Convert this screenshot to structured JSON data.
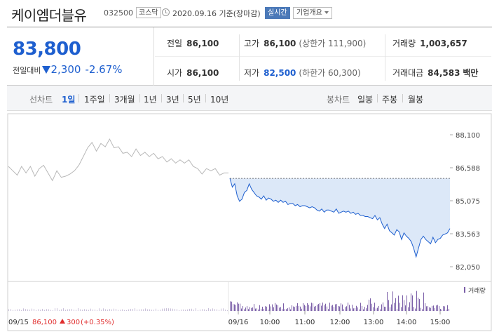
{
  "header": {
    "stock_name": "케이엠더블유",
    "stock_code": "032500",
    "market": "코스닥",
    "date_text": "2020.09.16 기준(장마감)",
    "realtime_label": "실시간",
    "company_info_label": "기업개요"
  },
  "quote": {
    "price": "83,800",
    "change_label": "전일대비",
    "change_value": "2,300",
    "change_percent": "-2.67%",
    "prev_close_label": "전일",
    "prev_close": "86,100",
    "open_label": "시가",
    "open": "86,100",
    "high_label": "고가",
    "high": "86,100",
    "upper_limit": "(상한가 111,900)",
    "low_label": "저가",
    "low": "82,500",
    "lower_limit": "(하한가 60,300)",
    "volume_label": "거래량",
    "volume": "1,003,657",
    "amount_label": "거래대금",
    "amount": "84,583",
    "amount_unit": "백만"
  },
  "tabs": {
    "line_chart_label": "선차트",
    "line_periods": [
      "1일",
      "1주일",
      "3개월",
      "1년",
      "3년",
      "5년",
      "10년"
    ],
    "active_period": "1일",
    "candle_chart_label": "봉차트",
    "candle_periods": [
      "일봉",
      "주봉",
      "월봉"
    ]
  },
  "colors": {
    "up": "#e02e2e",
    "down": "#1e5fcf",
    "area": "#dce8f8",
    "prev_day_line": "#b8b8b8",
    "volume_bar": "#7b5fa8"
  },
  "chart_data": {
    "type": "line",
    "ylim": [
      82050,
      88100
    ],
    "yticks": [
      "88,100",
      "86,588",
      "85,075",
      "83,563",
      "82,050"
    ],
    "xticks": [
      "09/16",
      "10:00",
      "11:00",
      "12:00",
      "13:00",
      "14:00",
      "15:00"
    ],
    "reference_price": 86100,
    "volume_legend": "거래량",
    "prev_day_summary": {
      "date": "09/15",
      "close": "86,100",
      "change": "300",
      "percent": "(+0.35%)"
    },
    "prev_day_series": [
      [
        0,
        86650
      ],
      [
        2,
        86450
      ],
      [
        4,
        86250
      ],
      [
        6,
        86650
      ],
      [
        8,
        86350
      ],
      [
        10,
        86650
      ],
      [
        12,
        86200
      ],
      [
        14,
        86550
      ],
      [
        16,
        86700
      ],
      [
        18,
        86350
      ],
      [
        20,
        86000
      ],
      [
        22,
        86450
      ],
      [
        24,
        86150
      ],
      [
        26,
        86200
      ],
      [
        28,
        86300
      ],
      [
        30,
        86450
      ],
      [
        32,
        86700
      ],
      [
        34,
        87100
      ],
      [
        36,
        87500
      ],
      [
        38,
        87750
      ],
      [
        40,
        87350
      ],
      [
        42,
        87700
      ],
      [
        44,
        87550
      ],
      [
        46,
        87900
      ],
      [
        48,
        87500
      ],
      [
        50,
        87550
      ],
      [
        52,
        87250
      ],
      [
        54,
        87300
      ],
      [
        56,
        87100
      ],
      [
        58,
        87450
      ],
      [
        60,
        87150
      ],
      [
        62,
        87300
      ],
      [
        64,
        87100
      ],
      [
        66,
        87250
      ],
      [
        68,
        87000
      ],
      [
        70,
        87100
      ],
      [
        72,
        86850
      ],
      [
        74,
        87000
      ],
      [
        76,
        86800
      ],
      [
        78,
        86950
      ],
      [
        80,
        86800
      ],
      [
        82,
        86950
      ],
      [
        84,
        86650
      ],
      [
        86,
        86550
      ],
      [
        88,
        86300
      ],
      [
        90,
        86550
      ],
      [
        92,
        86450
      ],
      [
        94,
        86550
      ],
      [
        96,
        86250
      ],
      [
        98,
        86350
      ],
      [
        100,
        86350
      ]
    ],
    "today_series": [
      [
        0,
        86100
      ],
      [
        1,
        85700
      ],
      [
        2,
        85850
      ],
      [
        3,
        85300
      ],
      [
        4,
        85050
      ],
      [
        5,
        85150
      ],
      [
        6,
        85450
      ],
      [
        7,
        85550
      ],
      [
        8,
        85850
      ],
      [
        9,
        85600
      ],
      [
        10,
        85450
      ],
      [
        11,
        85300
      ],
      [
        12,
        85250
      ],
      [
        13,
        85150
      ],
      [
        14,
        85300
      ],
      [
        15,
        85100
      ],
      [
        16,
        85200
      ],
      [
        17,
        85150
      ],
      [
        18,
        85050
      ],
      [
        19,
        85100
      ],
      [
        20,
        85000
      ],
      [
        21,
        85100
      ],
      [
        22,
        85000
      ],
      [
        23,
        85050
      ],
      [
        24,
        84900
      ],
      [
        25,
        84950
      ],
      [
        26,
        84950
      ],
      [
        27,
        84850
      ],
      [
        28,
        84900
      ],
      [
        29,
        84800
      ],
      [
        30,
        84850
      ],
      [
        31,
        84850
      ],
      [
        32,
        84800
      ],
      [
        33,
        84750
      ],
      [
        34,
        84800
      ],
      [
        35,
        84750
      ],
      [
        36,
        84650
      ],
      [
        37,
        84600
      ],
      [
        38,
        84700
      ],
      [
        39,
        84550
      ],
      [
        40,
        84650
      ],
      [
        41,
        84650
      ],
      [
        42,
        84600
      ],
      [
        43,
        84550
      ],
      [
        44,
        84700
      ],
      [
        45,
        84500
      ],
      [
        46,
        84550
      ],
      [
        47,
        84600
      ],
      [
        48,
        84550
      ],
      [
        49,
        84600
      ],
      [
        50,
        84500
      ],
      [
        51,
        84550
      ],
      [
        52,
        84450
      ],
      [
        53,
        84500
      ],
      [
        54,
        84400
      ],
      [
        55,
        84400
      ],
      [
        56,
        84350
      ],
      [
        57,
        84350
      ],
      [
        58,
        84300
      ],
      [
        59,
        84250
      ],
      [
        60,
        84400
      ],
      [
        61,
        84200
      ],
      [
        62,
        84300
      ],
      [
        63,
        84000
      ],
      [
        64,
        83800
      ],
      [
        65,
        84000
      ],
      [
        66,
        83700
      ],
      [
        67,
        83600
      ],
      [
        68,
        83500
      ],
      [
        69,
        83750
      ],
      [
        70,
        83650
      ],
      [
        71,
        83300
      ],
      [
        72,
        83600
      ],
      [
        73,
        83450
      ],
      [
        74,
        83350
      ],
      [
        75,
        83200
      ],
      [
        76,
        82900
      ],
      [
        77,
        82500
      ],
      [
        78,
        82900
      ],
      [
        79,
        83300
      ],
      [
        80,
        83450
      ],
      [
        81,
        83300
      ],
      [
        82,
        83200
      ],
      [
        83,
        83100
      ],
      [
        84,
        83400
      ],
      [
        85,
        83150
      ],
      [
        86,
        83300
      ],
      [
        87,
        83350
      ],
      [
        88,
        83500
      ],
      [
        89,
        83550
      ],
      [
        90,
        83600
      ],
      [
        91,
        83800
      ]
    ]
  }
}
